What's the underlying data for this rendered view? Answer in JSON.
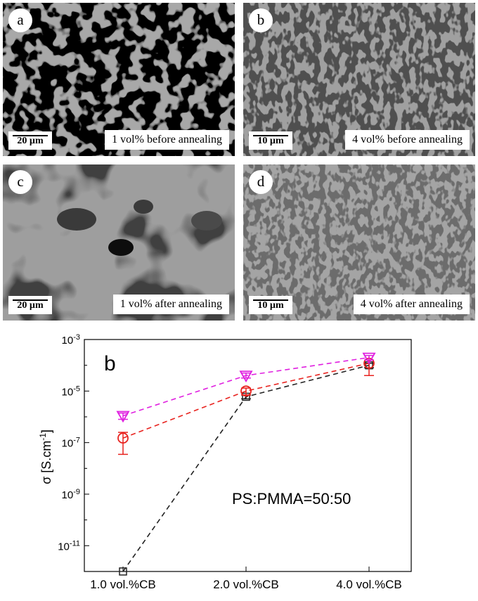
{
  "panels": [
    {
      "letter": "a",
      "scale": "20 µm",
      "caption": "1 vol% before annealing"
    },
    {
      "letter": "b",
      "scale": "10 µm",
      "caption": "4 vol% before annealing"
    },
    {
      "letter": "c",
      "scale": "20 µm",
      "caption": "1 vol% after annealing"
    },
    {
      "letter": "d",
      "scale": "10 µm",
      "caption": "4 vol% after annealing"
    }
  ],
  "chart_data": {
    "type": "line",
    "panel_label": "b",
    "annotation": "PS:PMMA=50:50",
    "ylabel_base": "σ [S.cm",
    "ylabel_sup": "-1",
    "ylabel_end": "]",
    "y_scale": "log",
    "ylim": [
      1e-12,
      0.001
    ],
    "y_ticks": [
      {
        "value": 0.001,
        "base": "10",
        "exp": "-3"
      },
      {
        "value": 1e-05,
        "base": "10",
        "exp": "-5"
      },
      {
        "value": 1e-07,
        "base": "10",
        "exp": "-7"
      },
      {
        "value": 1e-09,
        "base": "10",
        "exp": "-9"
      },
      {
        "value": 1e-11,
        "base": "10",
        "exp": "-11"
      }
    ],
    "categories": [
      "1.0 vol.%CB",
      "2.0 vol.%CB",
      "4.0 vol.%CB"
    ],
    "grid": false,
    "series": [
      {
        "marker": "square",
        "color": "#222222",
        "values": [
          1e-12,
          6e-06,
          0.0001
        ],
        "err_low": [
          null,
          5e-06,
          8e-05
        ],
        "err_high": [
          null,
          7e-06,
          0.00012
        ]
      },
      {
        "marker": "circle",
        "color": "#e8231f",
        "values": [
          1.5e-07,
          1e-05,
          0.00012
        ],
        "err_low": [
          3.5e-08,
          7e-06,
          4e-05
        ],
        "err_high": [
          2.5e-07,
          1.3e-05,
          0.00016
        ]
      },
      {
        "marker": "triangle-down",
        "color": "#e020e0",
        "values": [
          1.1e-06,
          4e-05,
          0.0002
        ],
        "err_low": [
          8e-07,
          3.2e-05,
          0.00016
        ],
        "err_high": [
          1.4e-06,
          5e-05,
          0.00024
        ]
      }
    ]
  }
}
